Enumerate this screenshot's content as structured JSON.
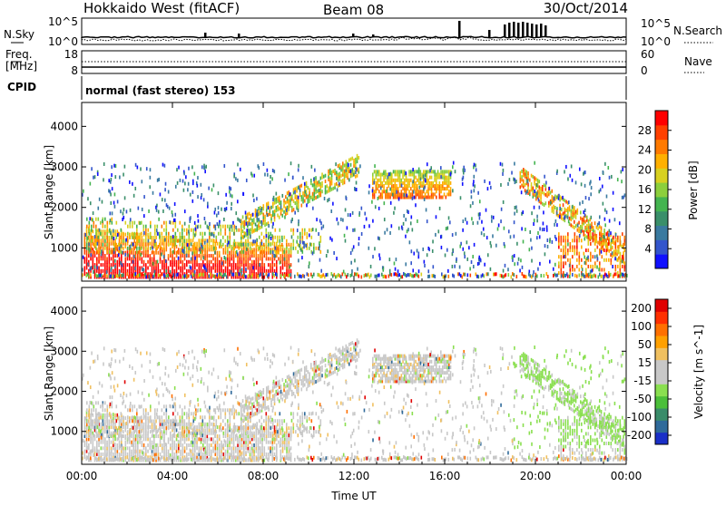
{
  "header": {
    "title": "Hokkaido West (fitACF)",
    "beam": "Beam 08",
    "date": "30/Oct/2014"
  },
  "top_panel": {
    "nsky_label": "N.Sky",
    "nsearch_label": "N.Search",
    "left_ticks": [
      "10^5",
      "10^0"
    ],
    "right_ticks": [
      "10^5",
      "10^0"
    ],
    "freq_label": "Freq.",
    "freq_unit": "[MHz]",
    "freq_ticks": [
      "18",
      "8"
    ],
    "nave_label": "Nave",
    "nave_ticks": [
      "60",
      "0"
    ],
    "cpid_label": "CPID",
    "cpid_text": "normal (fast stereo) 153"
  },
  "chart_data": [
    {
      "type": "heatmap",
      "name": "power",
      "ylabel": "Slant Range [km]",
      "xlabel": "",
      "yticks": [
        1000,
        2000,
        3000,
        4000
      ],
      "ylim": [
        180,
        4590
      ],
      "xticks": [
        "00:00",
        "04:00",
        "08:00",
        "12:00",
        "16:00",
        "20:00",
        "00:00"
      ],
      "xlim_hours": [
        0,
        24
      ],
      "colorbar": {
        "label": "Power [dB]",
        "ticks": [
          "4",
          "8",
          "12",
          "16",
          "20",
          "24",
          "28"
        ],
        "colors": [
          "#1010ff",
          "#3355cc",
          "#3a7aa0",
          "#3a8f6a",
          "#44b450",
          "#8ccf3c",
          "#d8d020",
          "#ffb000",
          "#ff7a00",
          "#ff4000",
          "#ff0000"
        ]
      }
    },
    {
      "type": "heatmap",
      "name": "velocity",
      "ylabel": "Slant Range [km]",
      "xlabel": "Time UT",
      "yticks": [
        1000,
        2000,
        3000,
        4000
      ],
      "ylim": [
        180,
        4590
      ],
      "xticks": [
        "00:00",
        "04:00",
        "08:00",
        "12:00",
        "16:00",
        "20:00",
        "00:00"
      ],
      "xlim_hours": [
        0,
        24
      ],
      "colorbar": {
        "label": "Velocity [m s^-1]",
        "ticks": [
          "200",
          "100",
          "50",
          "15",
          "-15",
          "-50",
          "-100",
          "-200"
        ],
        "colors": [
          "#1a2fc8",
          "#2f6a9a",
          "#3a8c6a",
          "#4bbf3a",
          "#8adf50",
          "#c8c8c8",
          "#c8c8c8",
          "#f0c060",
          "#ffa000",
          "#ff7000",
          "#ff3000",
          "#e00000"
        ]
      }
    }
  ]
}
